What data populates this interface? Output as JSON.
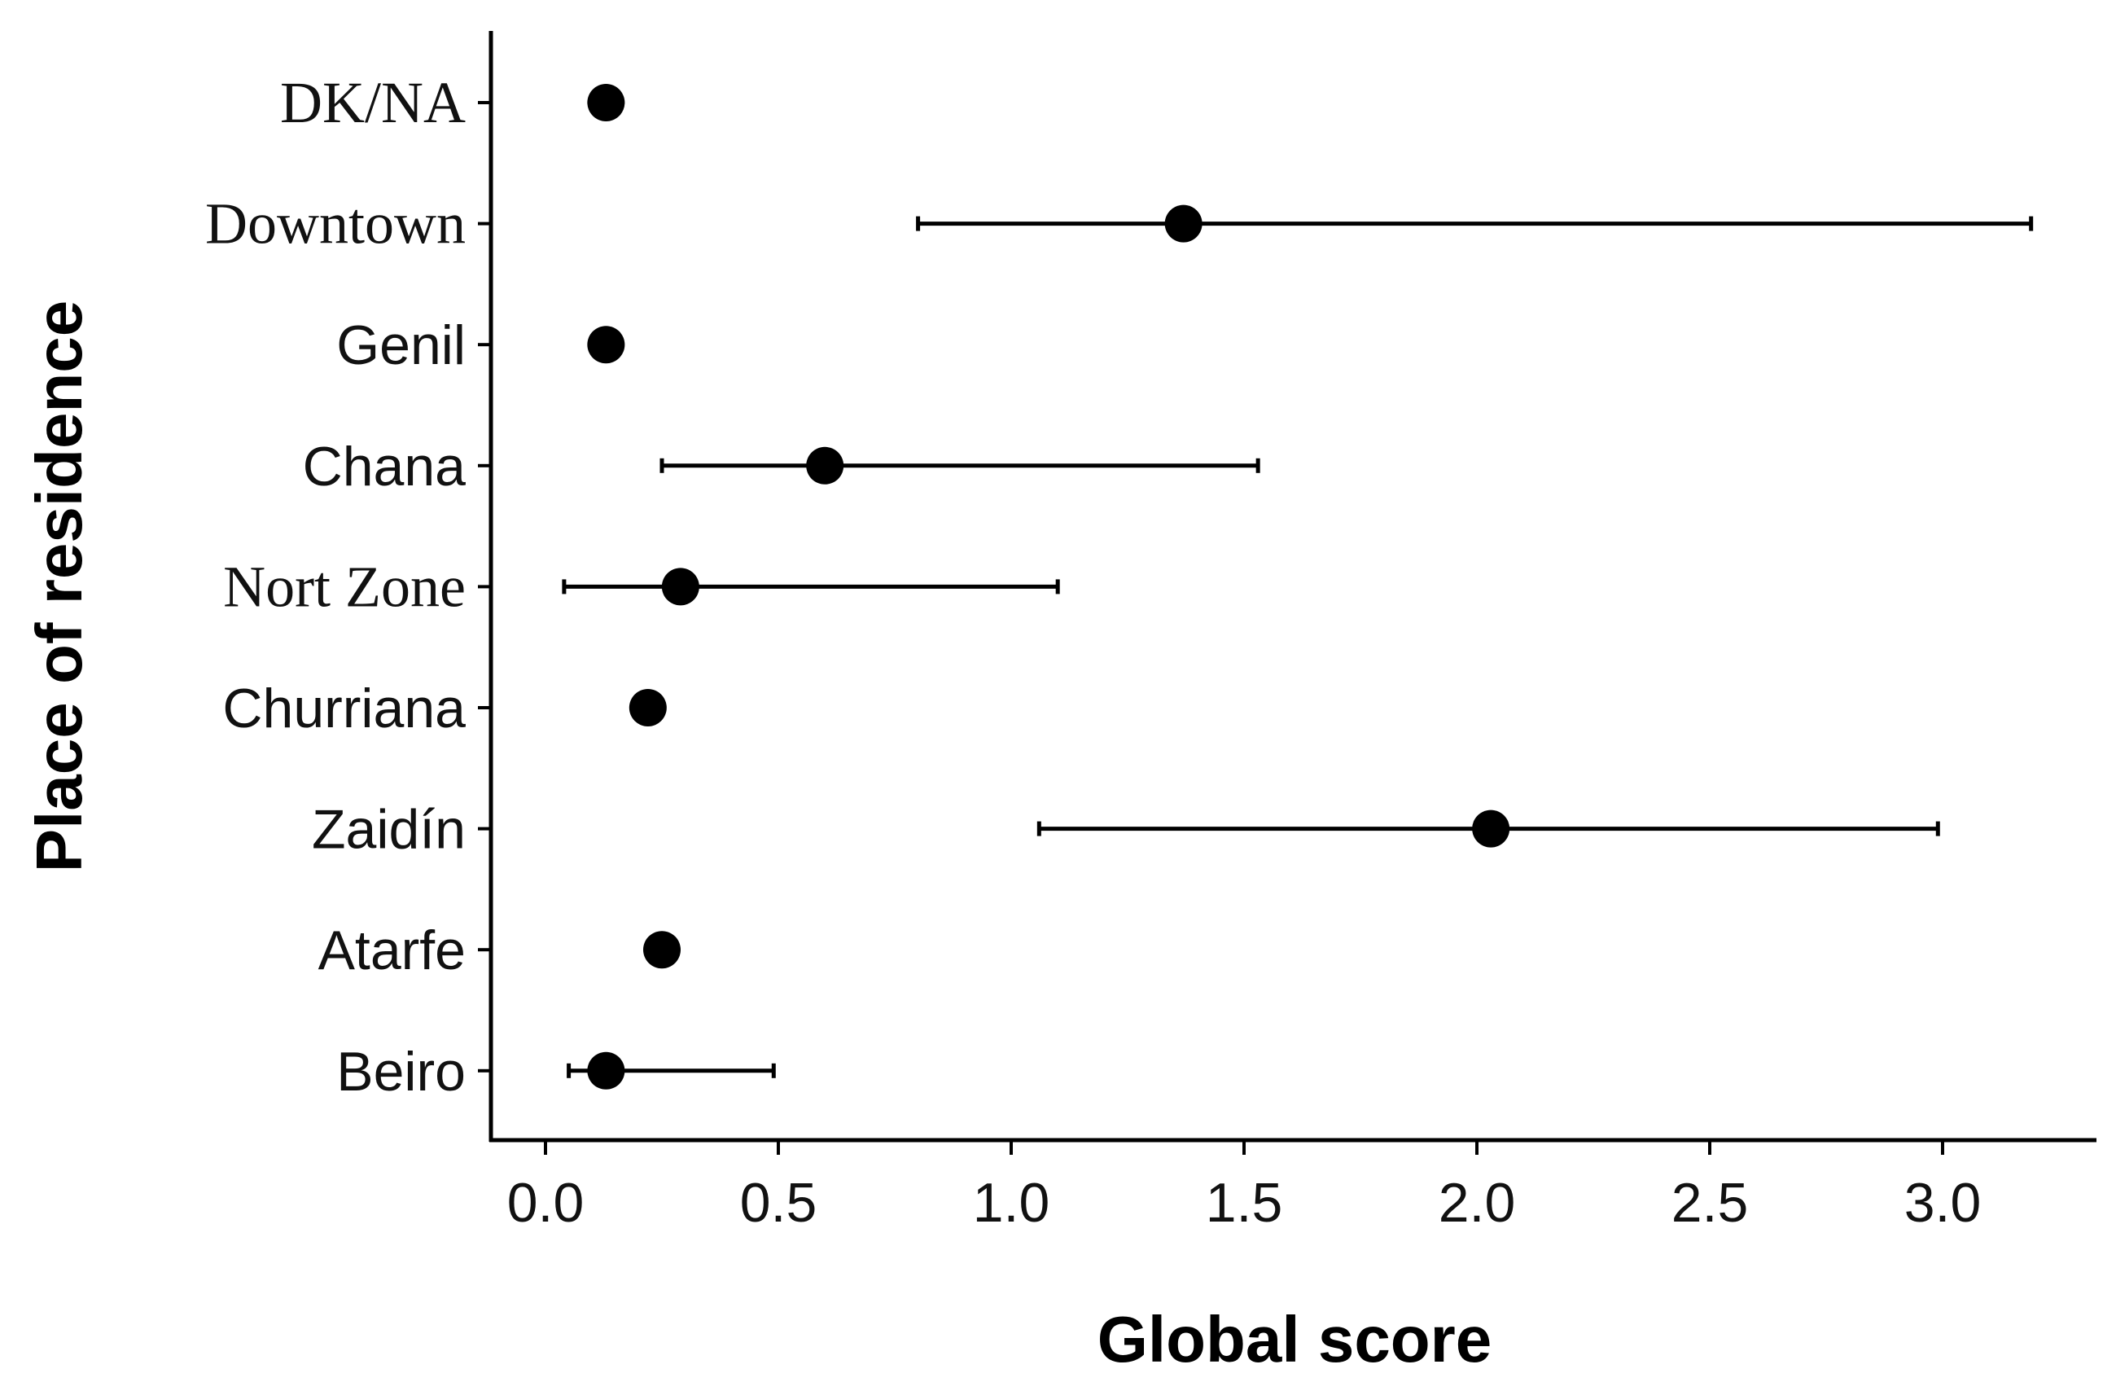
{
  "chart_data": {
    "type": "scatter",
    "orientation": "horizontal",
    "xlabel": "Global score",
    "ylabel": "Place of residence",
    "xlim": [
      -0.12,
      3.33
    ],
    "xticks": [
      0.0,
      0.5,
      1.0,
      1.5,
      2.0,
      2.5,
      3.0
    ],
    "xtick_labels": [
      "0.0",
      "0.5",
      "1.0",
      "1.5",
      "2.0",
      "2.5",
      "3.0"
    ],
    "categories": [
      "DK/NA",
      "Downtown",
      "Genil",
      "Chana",
      "Nort Zone",
      "Churriana",
      "Zaidín",
      "Atarfe",
      "Beiro"
    ],
    "points": [
      {
        "category": "DK/NA",
        "value": 0.13,
        "low": null,
        "high": null
      },
      {
        "category": "Downtown",
        "value": 1.37,
        "low": 0.8,
        "high": 3.19
      },
      {
        "category": "Genil",
        "value": 0.13,
        "low": null,
        "high": null
      },
      {
        "category": "Chana",
        "value": 0.6,
        "low": 0.25,
        "high": 1.53
      },
      {
        "category": "Nort Zone",
        "value": 0.29,
        "low": 0.04,
        "high": 1.1
      },
      {
        "category": "Churriana",
        "value": 0.22,
        "low": null,
        "high": null
      },
      {
        "category": "Zaidín",
        "value": 2.03,
        "low": 1.06,
        "high": 2.99
      },
      {
        "category": "Atarfe",
        "value": 0.25,
        "low": null,
        "high": null
      },
      {
        "category": "Beiro",
        "value": 0.13,
        "low": 0.05,
        "high": 0.49
      }
    ],
    "grid": false,
    "legend": "none",
    "point_color": "#000000"
  }
}
